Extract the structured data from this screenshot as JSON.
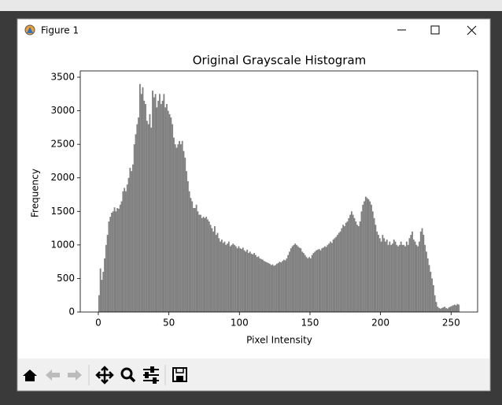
{
  "window": {
    "title": "Figure 1"
  },
  "chart_data": {
    "type": "histogram",
    "title": "Original Grayscale Histogram",
    "x_label": "Pixel Intensity",
    "y_label": "Frequency",
    "color": "#808080",
    "bins": [
      0,
      1,
      2,
      3,
      4,
      5,
      6,
      7,
      8,
      9,
      10,
      11,
      12,
      13,
      14,
      15,
      16,
      17,
      18,
      19,
      20,
      21,
      22,
      23,
      24,
      25,
      26,
      27,
      28,
      29,
      30,
      31,
      32,
      33,
      34,
      35,
      36,
      37,
      38,
      39,
      40,
      41,
      42,
      43,
      44,
      45,
      46,
      47,
      48,
      49,
      50,
      51,
      52,
      53,
      54,
      55,
      56,
      57,
      58,
      59,
      60,
      61,
      62,
      63,
      64,
      65,
      66,
      67,
      68,
      69,
      70,
      71,
      72,
      73,
      74,
      75,
      76,
      77,
      78,
      79,
      80,
      81,
      82,
      83,
      84,
      85,
      86,
      87,
      88,
      89,
      90,
      91,
      92,
      93,
      94,
      95,
      96,
      97,
      98,
      99,
      100,
      101,
      102,
      103,
      104,
      105,
      106,
      107,
      108,
      109,
      110,
      111,
      112,
      113,
      114,
      115,
      116,
      117,
      118,
      119,
      120,
      121,
      122,
      123,
      124,
      125,
      126,
      127,
      128,
      129,
      130,
      131,
      132,
      133,
      134,
      135,
      136,
      137,
      138,
      139,
      140,
      141,
      142,
      143,
      144,
      145,
      146,
      147,
      148,
      149,
      150,
      151,
      152,
      153,
      154,
      155,
      156,
      157,
      158,
      159,
      160,
      161,
      162,
      163,
      164,
      165,
      166,
      167,
      168,
      169,
      170,
      171,
      172,
      173,
      174,
      175,
      176,
      177,
      178,
      179,
      180,
      181,
      182,
      183,
      184,
      185,
      186,
      187,
      188,
      189,
      190,
      191,
      192,
      193,
      194,
      195,
      196,
      197,
      198,
      199,
      200,
      201,
      202,
      203,
      204,
      205,
      206,
      207,
      208,
      209,
      210,
      211,
      212,
      213,
      214,
      215,
      216,
      217,
      218,
      219,
      220,
      221,
      222,
      223,
      224,
      225,
      226,
      227,
      228,
      229,
      230,
      231,
      232,
      233,
      234,
      235,
      236,
      237,
      238,
      239,
      240,
      241,
      242,
      243,
      244,
      245,
      246,
      247,
      248,
      249,
      250,
      251,
      252,
      253,
      254,
      255,
      256
    ],
    "values": [
      250,
      650,
      480,
      600,
      800,
      1000,
      1150,
      1350,
      1420,
      1480,
      1500,
      1560,
      1500,
      1550,
      1540,
      1600,
      1650,
      1800,
      1850,
      1800,
      1900,
      2000,
      2150,
      2100,
      2200,
      2500,
      2650,
      2800,
      2900,
      3400,
      3250,
      3350,
      3150,
      3100,
      2850,
      2800,
      2950,
      2750,
      3300,
      3200,
      3250,
      3050,
      3150,
      3250,
      3100,
      3150,
      3250,
      3050,
      3100,
      3000,
      2950,
      2900,
      2800,
      2600,
      2500,
      2450,
      2500,
      2550,
      2500,
      2550,
      2400,
      2300,
      2100,
      1950,
      1800,
      1700,
      1650,
      1550,
      1550,
      1600,
      1500,
      1450,
      1450,
      1400,
      1420,
      1400,
      1420,
      1380,
      1350,
      1300,
      1250,
      1200,
      1280,
      1150,
      1180,
      1100,
      1050,
      1080,
      1030,
      1050,
      1000,
      1020,
      1050,
      980,
      1000,
      1020,
      1000,
      980,
      950,
      980,
      950,
      940,
      960,
      920,
      900,
      930,
      880,
      900,
      870,
      860,
      880,
      850,
      820,
      830,
      800,
      790,
      780,
      760,
      750,
      740,
      730,
      720,
      700,
      710,
      690,
      700,
      720,
      730,
      750,
      740,
      760,
      780,
      770,
      800,
      850,
      900,
      950,
      980,
      1000,
      1020,
      1000,
      980,
      960,
      950,
      900,
      880,
      850,
      820,
      800,
      820,
      800,
      850,
      880,
      900,
      920,
      930,
      940,
      920,
      950,
      960,
      980,
      970,
      1000,
      1020,
      1050,
      1030,
      1080,
      1100,
      1120,
      1150,
      1180,
      1200,
      1250,
      1300,
      1280,
      1330,
      1350,
      1400,
      1450,
      1500,
      1450,
      1400,
      1350,
      1300,
      1280,
      1350,
      1500,
      1600,
      1650,
      1720,
      1700,
      1680,
      1650,
      1600,
      1500,
      1400,
      1300,
      1200,
      1150,
      1100,
      1050,
      1150,
      1100,
      1050,
      1080,
      1000,
      1050,
      1000,
      1020,
      1080,
      1050,
      1000,
      980,
      1000,
      1050,
      1000,
      1000,
      980,
      1050,
      1000,
      1100,
      1150,
      1200,
      1080,
      1050,
      1000,
      980,
      1050,
      1200,
      1250,
      1150,
      1000,
      900,
      800,
      700,
      600,
      500,
      400,
      250,
      150,
      80,
      60,
      50,
      60,
      70,
      80,
      60,
      50,
      70,
      80,
      90,
      100,
      110,
      100,
      120,
      110
    ],
    "xlim": [
      -12.8,
      268.8
    ],
    "ylim": [
      0,
      3594
    ],
    "xticks": [
      0,
      50,
      100,
      150,
      200,
      250
    ],
    "yticks": [
      0,
      500,
      1000,
      1500,
      2000,
      2500,
      3000,
      3500
    ]
  }
}
